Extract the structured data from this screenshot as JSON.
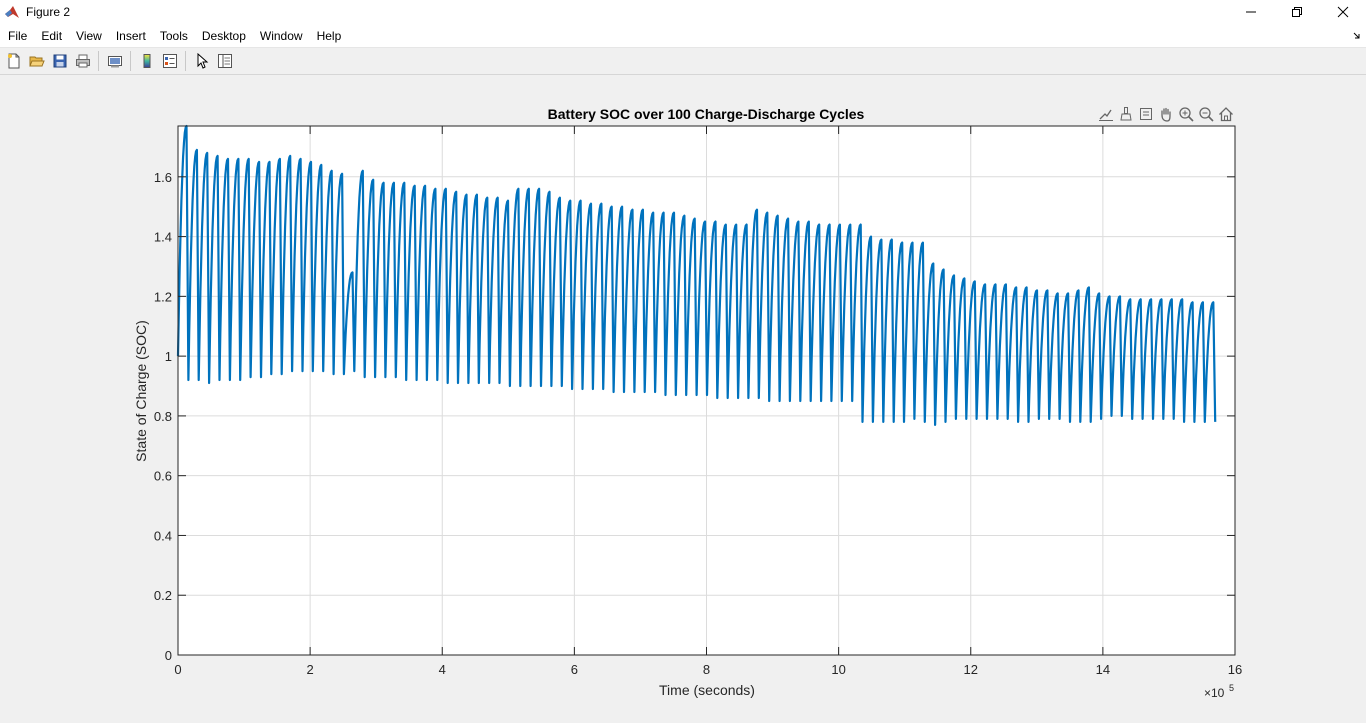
{
  "window": {
    "title": "Figure 2"
  },
  "menu": {
    "items": [
      "File",
      "Edit",
      "View",
      "Insert",
      "Tools",
      "Desktop",
      "Window",
      "Help"
    ]
  },
  "toolbar": {
    "buttons": [
      "new-figure-icon",
      "open-file-icon",
      "save-icon",
      "print-icon",
      "link-plot-icon",
      "colorbar-icon",
      "legend-icon",
      "pointer-icon",
      "property-inspector-icon"
    ]
  },
  "axes_toolbar": {
    "buttons": [
      "export-icon",
      "brush-icon",
      "datatip-icon",
      "pan-icon",
      "zoom-in-icon",
      "zoom-out-icon",
      "home-icon"
    ]
  },
  "colors": {
    "line": "#0072bd",
    "grid": "#dcdcdc",
    "axes": "#262626"
  },
  "chart_data": {
    "type": "line",
    "title": "Battery SOC over 100 Charge-Discharge Cycles",
    "xlabel": "Time (seconds)",
    "ylabel": "State of Charge (SOC)",
    "xlim": [
      0,
      16
    ],
    "ylim": [
      0,
      1.77
    ],
    "x_exponent_label": "×10",
    "x_exponent": "5",
    "xticks": [
      0,
      2,
      4,
      6,
      8,
      10,
      12,
      14,
      16
    ],
    "xtick_labels": [
      "0",
      "2",
      "4",
      "6",
      "8",
      "10",
      "12",
      "14",
      "16"
    ],
    "yticks": [
      0,
      0.2,
      0.4,
      0.6,
      0.8,
      1.0,
      1.2,
      1.4,
      1.6
    ],
    "ytick_labels": [
      "0",
      "0.2",
      "0.4",
      "0.6",
      "0.8",
      "1",
      "1.2",
      "1.4",
      "1.6"
    ],
    "grid": true,
    "series": [
      {
        "cycle_count": 100,
        "x_start": 0,
        "x_end": 15.7,
        "initial_value": 1.0,
        "peaks": [
          1.77,
          1.69,
          1.68,
          1.67,
          1.66,
          1.66,
          1.66,
          1.65,
          1.65,
          1.66,
          1.67,
          1.66,
          1.65,
          1.64,
          1.62,
          1.61,
          1.28,
          1.62,
          1.59,
          1.58,
          1.58,
          1.58,
          1.57,
          1.57,
          1.56,
          1.56,
          1.55,
          1.54,
          1.54,
          1.53,
          1.53,
          1.52,
          1.56,
          1.56,
          1.56,
          1.55,
          1.53,
          1.52,
          1.52,
          1.51,
          1.51,
          1.5,
          1.5,
          1.49,
          1.49,
          1.48,
          1.48,
          1.48,
          1.47,
          1.46,
          1.45,
          1.45,
          1.44,
          1.44,
          1.44,
          1.49,
          1.48,
          1.47,
          1.46,
          1.45,
          1.45,
          1.44,
          1.44,
          1.44,
          1.44,
          1.44,
          1.4,
          1.39,
          1.39,
          1.38,
          1.38,
          1.38,
          1.31,
          1.29,
          1.27,
          1.26,
          1.25,
          1.24,
          1.24,
          1.24,
          1.23,
          1.23,
          1.22,
          1.22,
          1.21,
          1.21,
          1.22,
          1.23,
          1.21,
          1.2,
          1.2,
          1.19,
          1.19,
          1.19,
          1.19,
          1.19,
          1.19,
          1.18,
          1.18,
          1.18
        ],
        "troughs": [
          0.92,
          0.92,
          0.91,
          0.92,
          0.92,
          0.92,
          0.93,
          0.93,
          0.94,
          0.94,
          0.95,
          0.95,
          0.95,
          0.95,
          0.94,
          0.94,
          0.95,
          0.93,
          0.93,
          0.93,
          0.93,
          0.92,
          0.92,
          0.92,
          0.92,
          0.91,
          0.91,
          0.91,
          0.91,
          0.91,
          0.91,
          0.9,
          0.9,
          0.9,
          0.9,
          0.9,
          0.9,
          0.89,
          0.89,
          0.89,
          0.89,
          0.88,
          0.88,
          0.88,
          0.88,
          0.88,
          0.87,
          0.87,
          0.87,
          0.87,
          0.87,
          0.86,
          0.86,
          0.86,
          0.86,
          0.86,
          0.85,
          0.85,
          0.85,
          0.85,
          0.85,
          0.85,
          0.85,
          0.85,
          0.85,
          0.78,
          0.78,
          0.78,
          0.78,
          0.78,
          0.79,
          0.78,
          0.77,
          0.78,
          0.79,
          0.79,
          0.79,
          0.79,
          0.79,
          0.79,
          0.78,
          0.78,
          0.79,
          0.79,
          0.79,
          0.78,
          0.78,
          0.78,
          0.79,
          0.8,
          0.8,
          0.79,
          0.79,
          0.79,
          0.79,
          0.79,
          0.78,
          0.78,
          0.78,
          0.78
        ]
      }
    ]
  }
}
